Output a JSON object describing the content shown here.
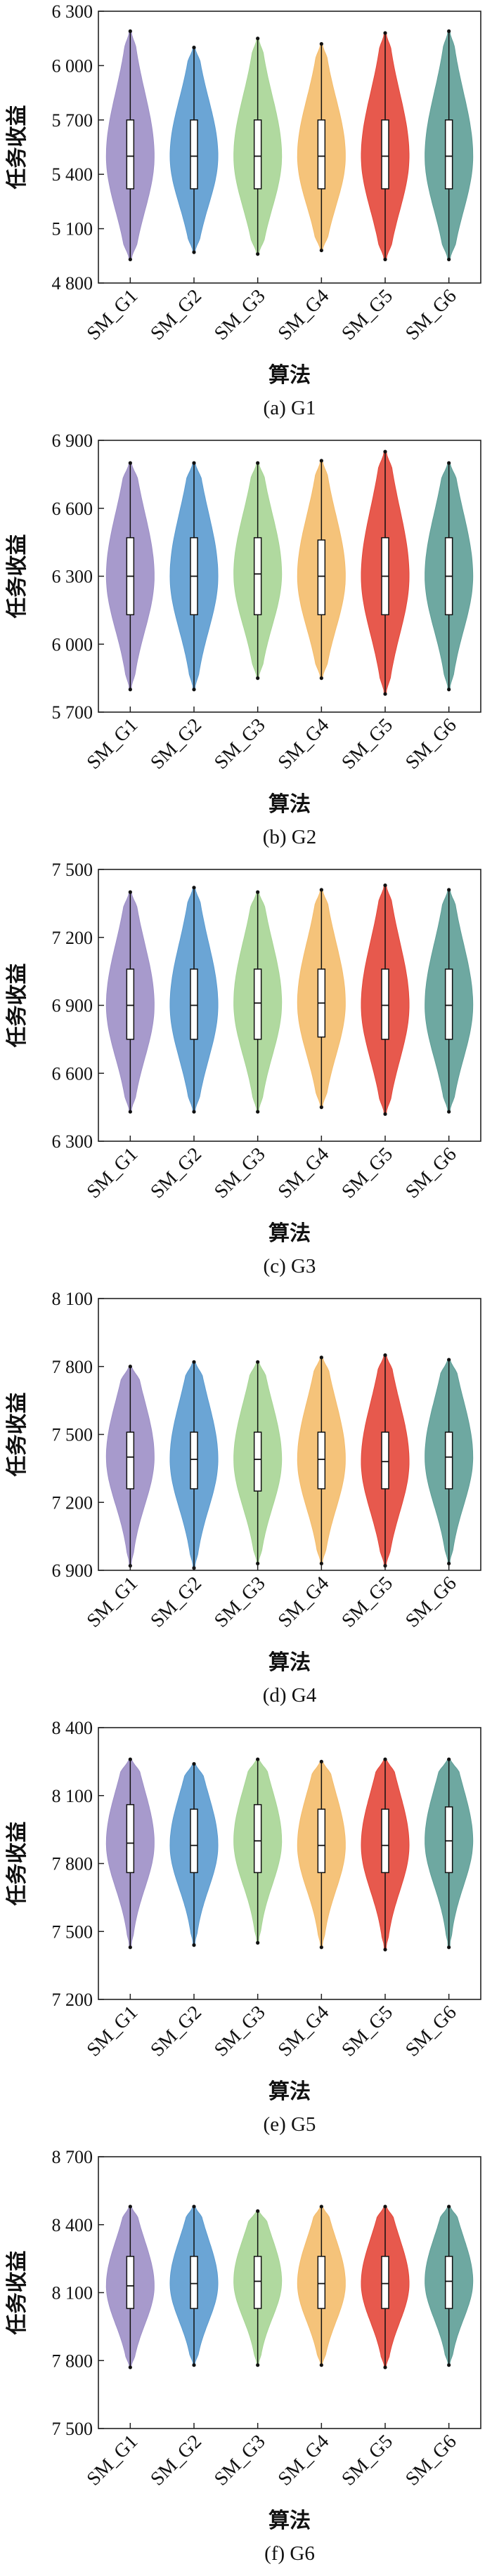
{
  "figure": {
    "ylabel": "任务收益",
    "xlabel": "算法",
    "categories": [
      "SM_G1",
      "SM_G2",
      "SM_G3",
      "SM_G4",
      "SM_G5",
      "SM_G6"
    ],
    "colors": [
      "#9D8FC7",
      "#5B9BD0",
      "#A7D595",
      "#F4BC6C",
      "#E4473A",
      "#5E9E97"
    ]
  },
  "chart_data": [
    {
      "type": "violin",
      "caption": "(a) G1",
      "ylim": [
        4800,
        6300
      ],
      "yticks": [
        "4 800",
        "5 100",
        "5 400",
        "5 700",
        "6 000",
        "6 300"
      ],
      "series": [
        {
          "name": "SM_G1",
          "min": 4930,
          "q1": 5320,
          "median": 5500,
          "q3": 5700,
          "max": 6190
        },
        {
          "name": "SM_G2",
          "min": 4970,
          "q1": 5320,
          "median": 5500,
          "q3": 5700,
          "max": 6100
        },
        {
          "name": "SM_G3",
          "min": 4960,
          "q1": 5320,
          "median": 5500,
          "q3": 5700,
          "max": 6150
        },
        {
          "name": "SM_G4",
          "min": 4980,
          "q1": 5320,
          "median": 5500,
          "q3": 5700,
          "max": 6120
        },
        {
          "name": "SM_G5",
          "min": 4930,
          "q1": 5320,
          "median": 5500,
          "q3": 5700,
          "max": 6180
        },
        {
          "name": "SM_G6",
          "min": 4930,
          "q1": 5320,
          "median": 5500,
          "q3": 5700,
          "max": 6190
        }
      ]
    },
    {
      "type": "violin",
      "caption": "(b) G2",
      "ylim": [
        5700,
        6900
      ],
      "yticks": [
        "5 700",
        "6 000",
        "6 300",
        "6 600",
        "6 900"
      ],
      "series": [
        {
          "name": "SM_G1",
          "min": 5800,
          "q1": 6130,
          "median": 6300,
          "q3": 6470,
          "max": 6800
        },
        {
          "name": "SM_G2",
          "min": 5800,
          "q1": 6130,
          "median": 6300,
          "q3": 6470,
          "max": 6800
        },
        {
          "name": "SM_G3",
          "min": 5850,
          "q1": 6130,
          "median": 6310,
          "q3": 6470,
          "max": 6800
        },
        {
          "name": "SM_G4",
          "min": 5850,
          "q1": 6130,
          "median": 6300,
          "q3": 6460,
          "max": 6810
        },
        {
          "name": "SM_G5",
          "min": 5780,
          "q1": 6130,
          "median": 6300,
          "q3": 6470,
          "max": 6850
        },
        {
          "name": "SM_G6",
          "min": 5800,
          "q1": 6130,
          "median": 6300,
          "q3": 6470,
          "max": 6800
        }
      ]
    },
    {
      "type": "violin",
      "caption": "(c) G3",
      "ylim": [
        6300,
        7500
      ],
      "yticks": [
        "6 300",
        "6 600",
        "6 900",
        "7 200",
        "7 500"
      ],
      "series": [
        {
          "name": "SM_G1",
          "min": 6430,
          "q1": 6750,
          "median": 6900,
          "q3": 7060,
          "max": 7400
        },
        {
          "name": "SM_G2",
          "min": 6430,
          "q1": 6750,
          "median": 6900,
          "q3": 7060,
          "max": 7420
        },
        {
          "name": "SM_G3",
          "min": 6430,
          "q1": 6750,
          "median": 6910,
          "q3": 7060,
          "max": 7400
        },
        {
          "name": "SM_G4",
          "min": 6450,
          "q1": 6760,
          "median": 6910,
          "q3": 7060,
          "max": 7410
        },
        {
          "name": "SM_G5",
          "min": 6420,
          "q1": 6750,
          "median": 6900,
          "q3": 7060,
          "max": 7430
        },
        {
          "name": "SM_G6",
          "min": 6430,
          "q1": 6750,
          "median": 6900,
          "q3": 7060,
          "max": 7410
        }
      ]
    },
    {
      "type": "violin",
      "caption": "(d) G4",
      "ylim": [
        6900,
        8100
      ],
      "yticks": [
        "6 900",
        "7 200",
        "7 500",
        "7 800",
        "8 100"
      ],
      "series": [
        {
          "name": "SM_G1",
          "min": 6920,
          "q1": 7260,
          "median": 7400,
          "q3": 7510,
          "max": 7800
        },
        {
          "name": "SM_G2",
          "min": 6910,
          "q1": 7260,
          "median": 7390,
          "q3": 7510,
          "max": 7820
        },
        {
          "name": "SM_G3",
          "min": 6930,
          "q1": 7250,
          "median": 7390,
          "q3": 7510,
          "max": 7820
        },
        {
          "name": "SM_G4",
          "min": 6930,
          "q1": 7260,
          "median": 7390,
          "q3": 7510,
          "max": 7840
        },
        {
          "name": "SM_G5",
          "min": 6920,
          "q1": 7260,
          "median": 7380,
          "q3": 7510,
          "max": 7850
        },
        {
          "name": "SM_G6",
          "min": 6930,
          "q1": 7260,
          "median": 7400,
          "q3": 7510,
          "max": 7830
        }
      ]
    },
    {
      "type": "violin",
      "caption": "(e) G5",
      "ylim": [
        7200,
        8400
      ],
      "yticks": [
        "7 200",
        "7 500",
        "7 800",
        "8 100",
        "8 400"
      ],
      "series": [
        {
          "name": "SM_G1",
          "min": 7430,
          "q1": 7760,
          "median": 7890,
          "q3": 8060,
          "max": 8260
        },
        {
          "name": "SM_G2",
          "min": 7440,
          "q1": 7760,
          "median": 7880,
          "q3": 8040,
          "max": 8240
        },
        {
          "name": "SM_G3",
          "min": 7450,
          "q1": 7760,
          "median": 7900,
          "q3": 8060,
          "max": 8260
        },
        {
          "name": "SM_G4",
          "min": 7430,
          "q1": 7760,
          "median": 7880,
          "q3": 8040,
          "max": 8250
        },
        {
          "name": "SM_G5",
          "min": 7420,
          "q1": 7760,
          "median": 7880,
          "q3": 8040,
          "max": 8260
        },
        {
          "name": "SM_G6",
          "min": 7430,
          "q1": 7760,
          "median": 7900,
          "q3": 8050,
          "max": 8260
        }
      ]
    },
    {
      "type": "violin",
      "caption": "(f) G6",
      "ylim": [
        7500,
        8700
      ],
      "yticks": [
        "7 500",
        "7 800",
        "8 100",
        "8 400",
        "8 700"
      ],
      "series": [
        {
          "name": "SM_G1",
          "min": 7770,
          "q1": 8030,
          "median": 8130,
          "q3": 8260,
          "max": 8480
        },
        {
          "name": "SM_G2",
          "min": 7780,
          "q1": 8030,
          "median": 8140,
          "q3": 8260,
          "max": 8480
        },
        {
          "name": "SM_G3",
          "min": 7780,
          "q1": 8030,
          "median": 8150,
          "q3": 8260,
          "max": 8460
        },
        {
          "name": "SM_G4",
          "min": 7780,
          "q1": 8030,
          "median": 8140,
          "q3": 8260,
          "max": 8480
        },
        {
          "name": "SM_G5",
          "min": 7770,
          "q1": 8030,
          "median": 8140,
          "q3": 8260,
          "max": 8480
        },
        {
          "name": "SM_G6",
          "min": 7780,
          "q1": 8030,
          "median": 8150,
          "q3": 8260,
          "max": 8480
        }
      ]
    }
  ]
}
